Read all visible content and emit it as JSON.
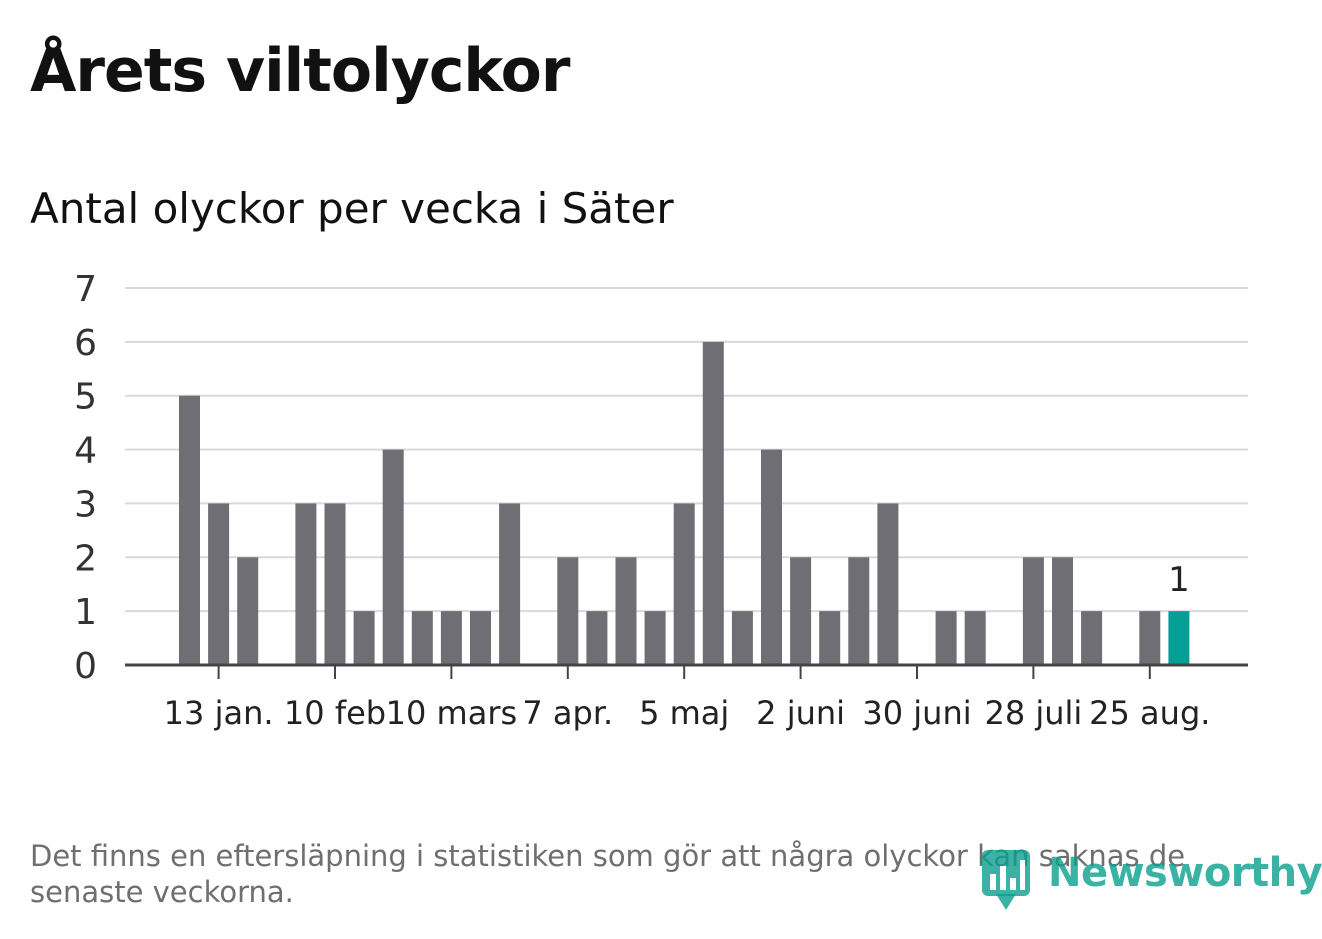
{
  "title": "Årets viltolyckor",
  "subtitle": "Antal olyckor per vecka i Säter",
  "footnote": "Det finns en eftersläpning i statistiken som gör att några olyckor kan saknas de senaste veckorna.",
  "brand": {
    "name": "Newsworthy",
    "icon": "newsworthy-logo-icon"
  },
  "colors": {
    "bar": "#6f6e74",
    "highlight": "#05a095",
    "grid": "#d9d9d9",
    "axis": "#444444"
  },
  "chart_data": {
    "type": "bar",
    "ylim": [
      0,
      7
    ],
    "yticks": [
      0,
      1,
      2,
      3,
      4,
      5,
      6,
      7
    ],
    "grid": true,
    "xtick_labels": [
      "13 jan.",
      "10 feb",
      "10 mars",
      "7 apr.",
      "5 maj",
      "2 juni",
      "30 juni",
      "28 juli",
      "25 aug."
    ],
    "xtick_week_index": [
      1,
      5,
      9,
      13,
      17,
      21,
      25,
      29,
      33
    ],
    "values": [
      5,
      3,
      2,
      0,
      3,
      3,
      1,
      4,
      1,
      1,
      1,
      3,
      0,
      2,
      1,
      2,
      1,
      3,
      6,
      1,
      4,
      2,
      1,
      2,
      3,
      0,
      1,
      1,
      0,
      2,
      2,
      1,
      0,
      1,
      1
    ],
    "highlight_index": 34,
    "data_labels": [
      {
        "index": 34,
        "text": "1"
      }
    ]
  }
}
